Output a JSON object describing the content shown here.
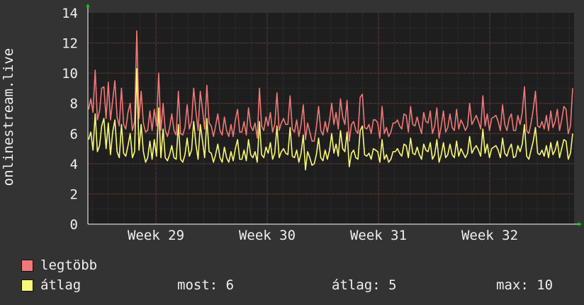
{
  "chart_data": {
    "type": "line",
    "ylabel": "onlinestream.live",
    "ylim": [
      0,
      14
    ],
    "yticks": [
      0,
      2,
      4,
      6,
      8,
      10,
      12,
      14
    ],
    "x_tick_labels": [
      "Week 29",
      "Week 30",
      "Week 31",
      "Week 32"
    ],
    "grid": true,
    "legend_placement": "bottom-left",
    "series": [
      {
        "name": "legtöbb",
        "color": "#f07878",
        "values": [
          7.6,
          8.3,
          7.4,
          10.2,
          6.9,
          7.5,
          9.0,
          9.1,
          7.0,
          9.4,
          6.9,
          8.2,
          9.5,
          7.1,
          6.5,
          9.0,
          6.6,
          6.3,
          7.4,
          8.0,
          6.2,
          6.8,
          12.8,
          7.0,
          8.8,
          6.7,
          6.1,
          6.2,
          7.5,
          6.2,
          7.6,
          6.5,
          10.0,
          6.2,
          8.0,
          6.2,
          5.8,
          6.4,
          7.3,
          6.2,
          5.9,
          8.8,
          6.0,
          5.9,
          6.4,
          7.9,
          6.3,
          6.8,
          9.0,
          7.5,
          6.2,
          8.8,
          7.6,
          6.3,
          9.2,
          6.7,
          6.5,
          5.8,
          6.5,
          7.3,
          6.2,
          5.9,
          7.1,
          6.2,
          5.8,
          6.6,
          5.8,
          6.9,
          7.6,
          6.1,
          6.1,
          6.8,
          5.9,
          7.7,
          6.5,
          6.2,
          6.7,
          5.7,
          9.0,
          6.5,
          6.2,
          7.1,
          6.5,
          7.4,
          6.1,
          6.6,
          8.7,
          6.2,
          6.7,
          7.0,
          6.6,
          6.6,
          8.5,
          6.3,
          6.1,
          6.9,
          5.8,
          6.6,
          7.9,
          5.6,
          6.7,
          6.1,
          5.5,
          5.5,
          6.4,
          7.8,
          6.2,
          5.9,
          6.8,
          6.1,
          6.9,
          8.0,
          6.6,
          7.4,
          6.3,
          8.3,
          7.1,
          6.6,
          8.2,
          5.5,
          6.6,
          6.8,
          6.2,
          6.0,
          8.4,
          8.6,
          6.4,
          6.3,
          6.6,
          6.0,
          6.9,
          6.9,
          6.7,
          5.7,
          7.8,
          6.0,
          6.4,
          5.8,
          6.1,
          6.7,
          6.7,
          6.9,
          6.5,
          6.3,
          7.3,
          7.2,
          6.1,
          7.8,
          6.6,
          6.5,
          7.1,
          6.5,
          6.0,
          7.4,
          6.8,
          6.7,
          7.5,
          6.0,
          6.5,
          7.7,
          5.7,
          6.5,
          7.5,
          6.1,
          6.4,
          7.3,
          6.4,
          6.2,
          7.6,
          6.3,
          6.9,
          6.6,
          6.2,
          6.5,
          8.0,
          6.6,
          6.9,
          7.2,
          6.8,
          6.3,
          8.5,
          6.5,
          7.3,
          6.2,
          7.0,
          7.1,
          7.2,
          6.8,
          6.2,
          7.9,
          6.6,
          6.2,
          7.0,
          7.3,
          6.2,
          6.2,
          7.2,
          6.6,
          7.4,
          9.1,
          6.2,
          6.0,
          6.7,
          7.6,
          8.8,
          6.5,
          6.4,
          6.8,
          6.3,
          7.2,
          6.2,
          7.5,
          6.4,
          6.8,
          7.6,
          6.2,
          6.9,
          7.8,
          7.6,
          6.0,
          6.5,
          9.0
        ]
      },
      {
        "name": "átlag",
        "color": "#f8f878",
        "values": [
          5.6,
          6.1,
          4.9,
          7.3,
          4.8,
          5.2,
          6.5,
          7.0,
          5.0,
          6.7,
          4.6,
          6.1,
          6.9,
          4.8,
          4.4,
          6.6,
          4.7,
          4.5,
          5.2,
          6.0,
          4.4,
          4.8,
          10.3,
          4.9,
          6.6,
          4.8,
          4.1,
          4.4,
          5.5,
          4.3,
          5.6,
          4.5,
          7.7,
          4.4,
          6.3,
          4.4,
          4.2,
          4.6,
          5.2,
          4.4,
          4.3,
          6.6,
          4.3,
          4.1,
          4.6,
          5.7,
          4.5,
          4.9,
          6.8,
          5.3,
          4.3,
          6.6,
          5.5,
          4.4,
          7.0,
          4.8,
          4.7,
          4.1,
          4.6,
          5.3,
          4.4,
          4.1,
          5.1,
          4.4,
          4.1,
          4.8,
          4.2,
          5.0,
          5.6,
          4.3,
          4.3,
          4.9,
          4.2,
          5.6,
          4.6,
          4.4,
          4.8,
          4.1,
          6.8,
          4.6,
          4.4,
          5.1,
          4.7,
          5.4,
          4.3,
          4.7,
          6.5,
          4.4,
          4.8,
          5.0,
          4.7,
          4.6,
          6.4,
          4.5,
          4.4,
          4.9,
          4.1,
          4.7,
          5.9,
          3.6,
          4.8,
          4.4,
          3.9,
          4.0,
          4.6,
          5.7,
          4.4,
          4.2,
          4.9,
          4.3,
          4.9,
          6.0,
          4.7,
          5.3,
          4.5,
          6.2,
          5.0,
          4.8,
          6.1,
          3.8,
          4.7,
          4.9,
          4.4,
          4.3,
          6.2,
          6.5,
          4.6,
          4.5,
          4.7,
          4.3,
          5.0,
          4.9,
          4.8,
          4.1,
          5.6,
          4.3,
          4.6,
          4.1,
          4.3,
          4.8,
          4.8,
          5.0,
          4.7,
          4.5,
          5.3,
          5.2,
          4.4,
          5.7,
          4.7,
          4.6,
          5.1,
          4.6,
          4.3,
          5.3,
          4.9,
          4.8,
          5.4,
          4.3,
          4.6,
          5.6,
          4.1,
          4.6,
          5.4,
          4.4,
          4.6,
          5.3,
          4.6,
          4.4,
          5.5,
          4.5,
          5.0,
          4.7,
          4.4,
          4.7,
          5.8,
          4.7,
          5.0,
          5.2,
          4.9,
          4.5,
          6.3,
          4.7,
          5.3,
          4.4,
          5.0,
          5.1,
          5.2,
          4.9,
          4.4,
          5.7,
          4.7,
          4.5,
          5.0,
          5.3,
          4.4,
          4.5,
          5.2,
          4.8,
          5.3,
          6.6,
          4.5,
          4.3,
          4.9,
          5.5,
          6.4,
          4.7,
          4.6,
          4.9,
          4.5,
          5.2,
          4.4,
          5.4,
          4.6,
          4.9,
          5.5,
          4.4,
          5.0,
          5.6,
          5.5,
          4.3,
          4.7,
          6.0
        ]
      }
    ]
  },
  "legend": {
    "items": [
      {
        "label": "legtöbb",
        "color": "#f07878"
      },
      {
        "label": "átlag",
        "color": "#f8f878"
      }
    ]
  },
  "stats": {
    "now": "most: 6",
    "avg": "átlag: 5",
    "max": "max: 10"
  }
}
